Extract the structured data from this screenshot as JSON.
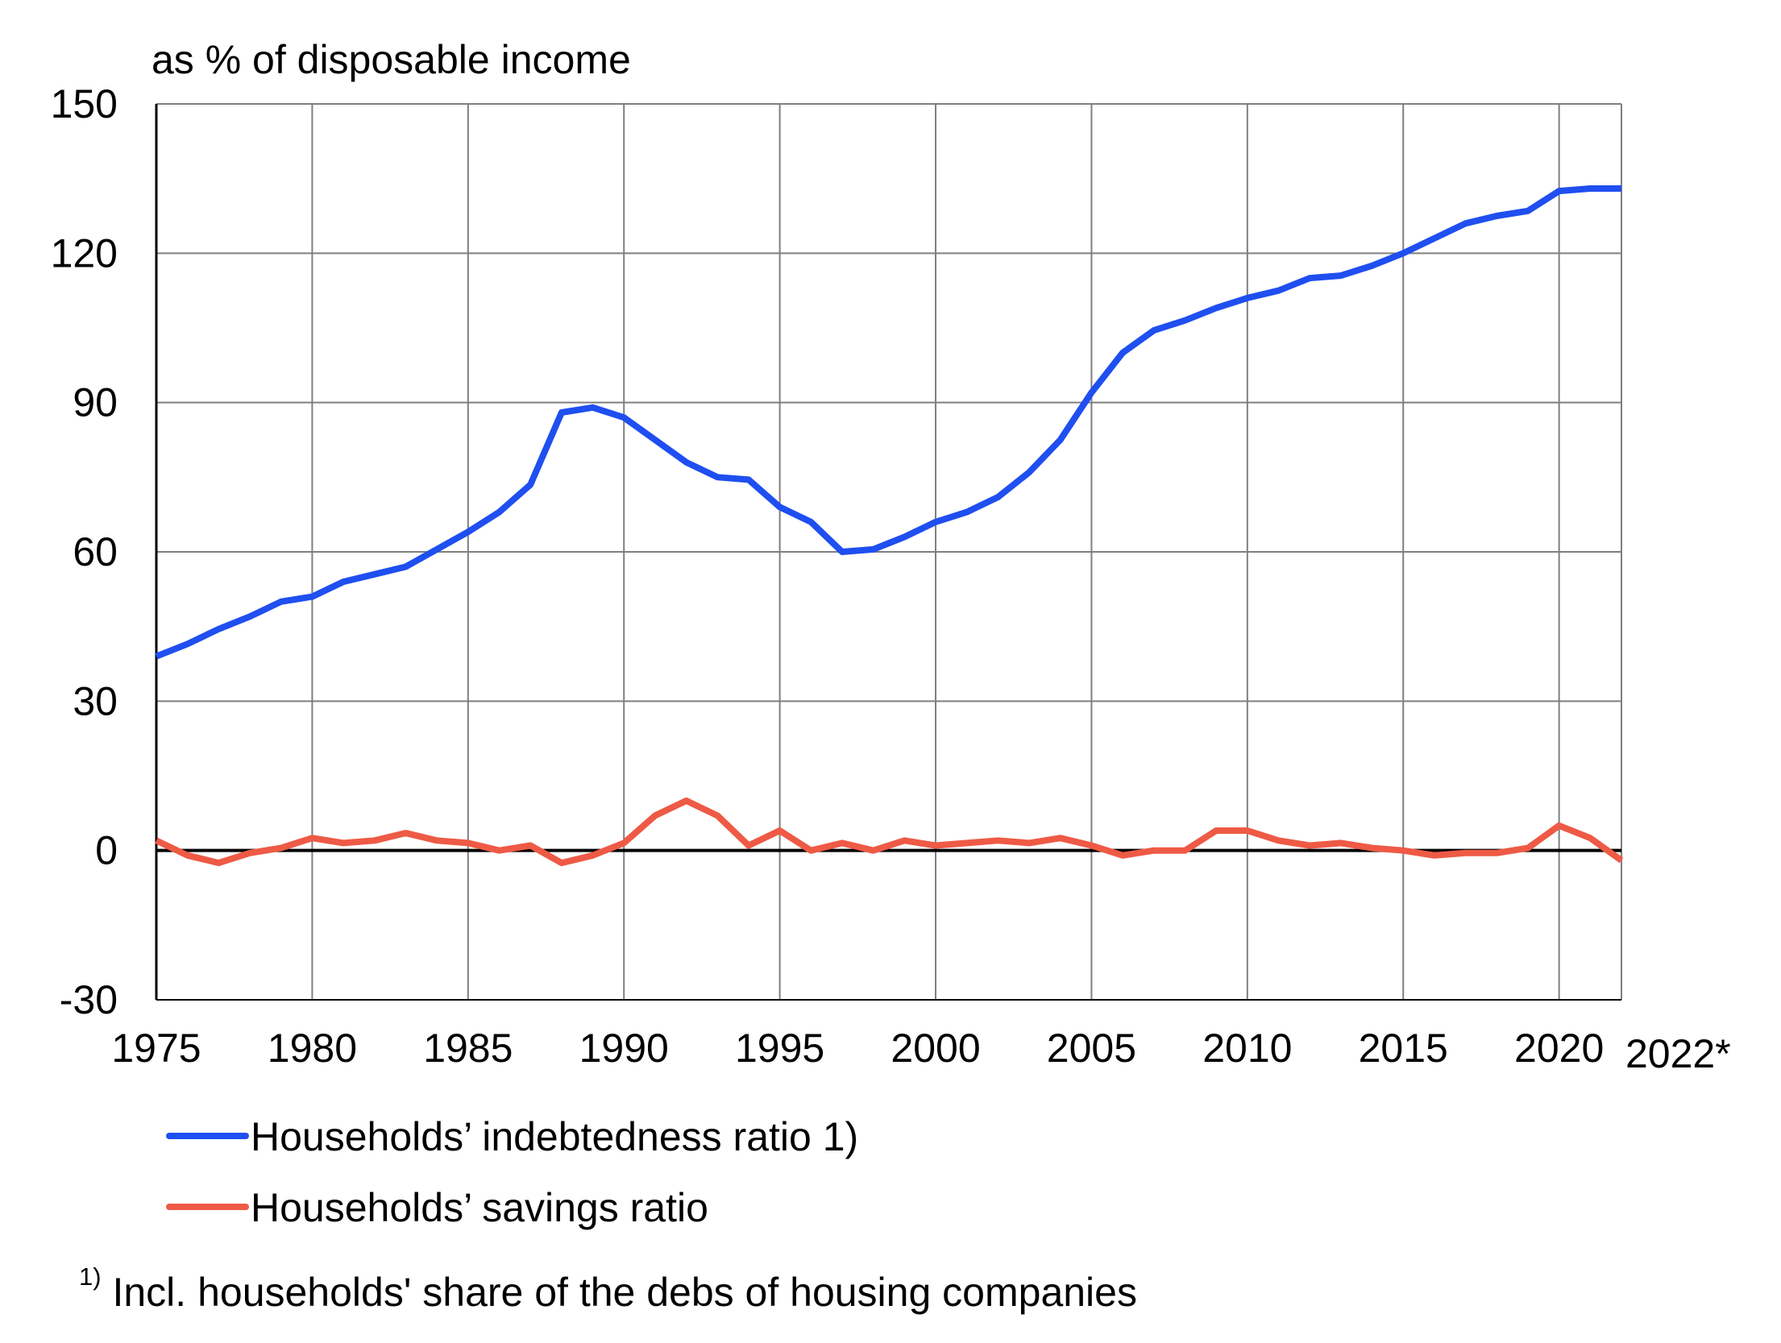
{
  "chart_data": {
    "type": "line",
    "ylabel": "as % of disposable income",
    "ylim": [
      -30,
      150
    ],
    "yticks": [
      150,
      120,
      90,
      60,
      30,
      0,
      -30
    ],
    "xlim": [
      1975,
      2022
    ],
    "xticks": [
      "1975",
      "1980",
      "1985",
      "1990",
      "1995",
      "2000",
      "2005",
      "2010",
      "2015",
      "2020",
      "2022*"
    ],
    "grid": true,
    "legend_position": "bottom-left",
    "x": [
      1975,
      1976,
      1977,
      1978,
      1979,
      1980,
      1981,
      1982,
      1983,
      1984,
      1985,
      1986,
      1987,
      1988,
      1989,
      1990,
      1991,
      1992,
      1993,
      1994,
      1995,
      1996,
      1997,
      1998,
      1999,
      2000,
      2001,
      2002,
      2003,
      2004,
      2005,
      2006,
      2007,
      2008,
      2009,
      2010,
      2011,
      2012,
      2013,
      2014,
      2015,
      2016,
      2017,
      2018,
      2019,
      2020,
      2021,
      2022
    ],
    "series": [
      {
        "name": "Households’ indebtedness ratio 1)",
        "color": "#1f4ff0",
        "values": [
          39,
          41.5,
          44.5,
          47,
          50,
          51,
          54,
          55.5,
          57,
          60.5,
          64,
          68,
          73.5,
          88,
          89,
          87,
          82.5,
          78,
          75,
          74.5,
          69,
          66,
          60,
          60.5,
          63,
          66,
          68,
          71,
          76,
          82.5,
          92,
          100,
          104.5,
          106.5,
          109,
          111,
          112.5,
          115,
          115.5,
          117.5,
          120,
          123,
          126,
          127.5,
          128.5,
          132.5,
          133,
          133
        ]
      },
      {
        "name": "Households’ savings ratio",
        "color": "#ee5a45",
        "values": [
          2,
          -1,
          -2.5,
          -0.5,
          0.5,
          2.5,
          1.5,
          2,
          3.5,
          2,
          1.5,
          0,
          1,
          -2.5,
          -1,
          1.5,
          7,
          10,
          7,
          1,
          4,
          0,
          1.5,
          0,
          2,
          1,
          1.5,
          2,
          1.5,
          2.5,
          1,
          -1,
          0,
          0,
          4,
          4,
          2,
          1,
          1.5,
          0.5,
          0,
          -1,
          -0.5,
          -0.5,
          0.5,
          5,
          2.5,
          -2
        ]
      }
    ],
    "footnote_mark": "1)",
    "footnote": "Incl. households' share of the debs of housing companies"
  }
}
